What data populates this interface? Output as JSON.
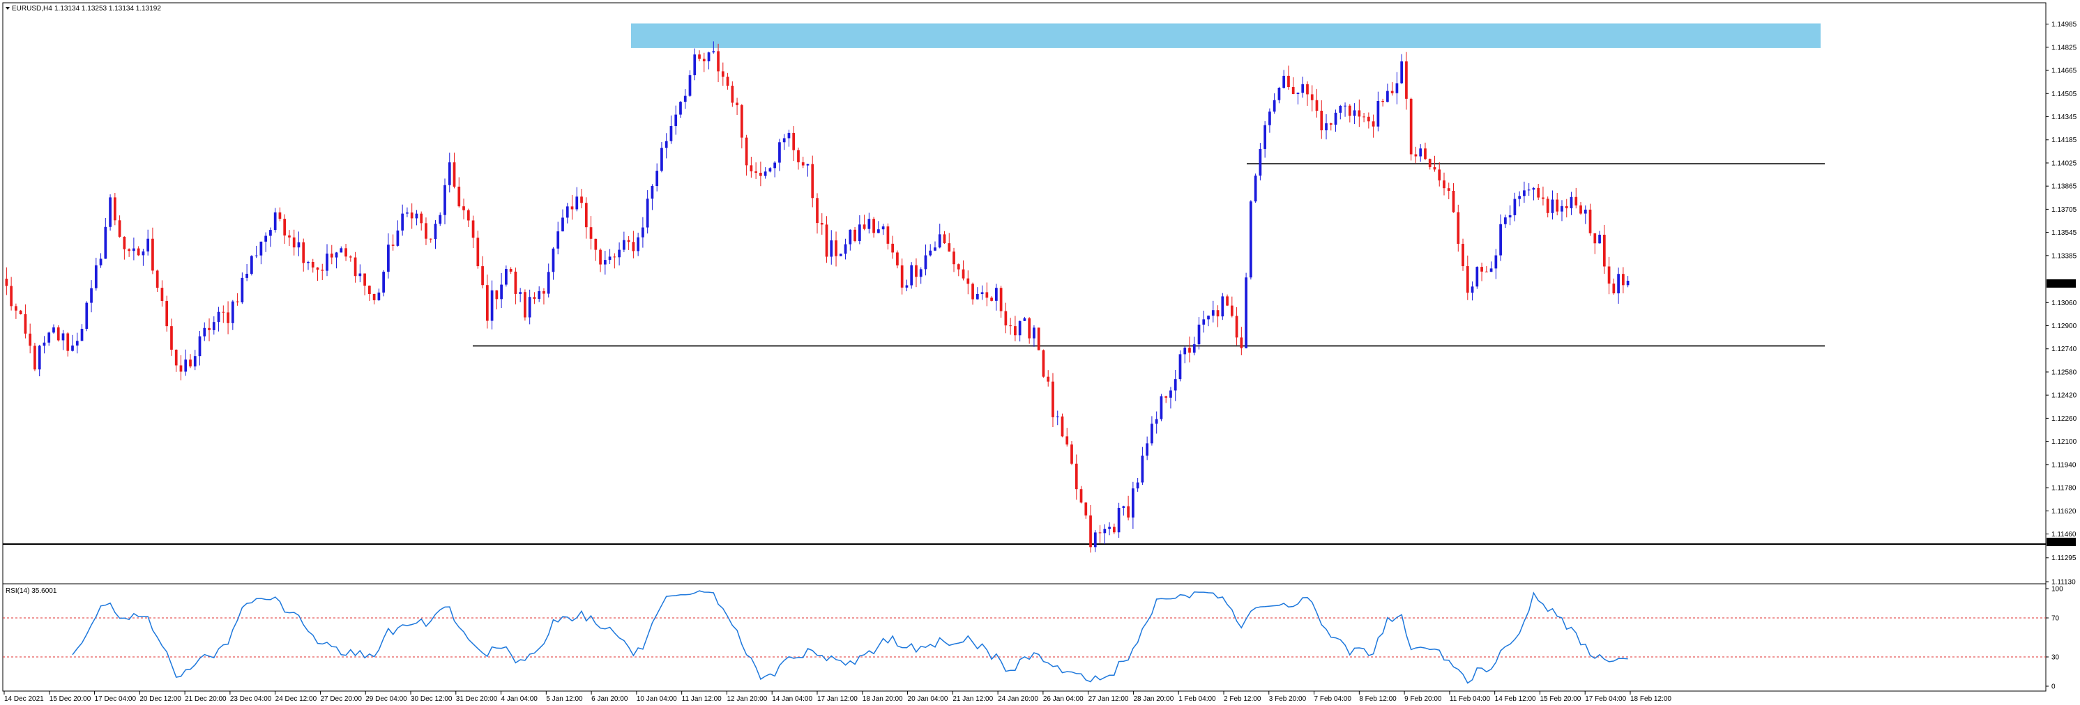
{
  "header": {
    "symbol": "EURUSD,H4",
    "ohlc": "1.13134 1.13253 1.13134 1.13192"
  },
  "rsi_panel": {
    "label": "RSI(14) 35.6001",
    "levels": [
      70,
      30
    ],
    "scale_labels": [
      "100",
      "70",
      "30",
      "0"
    ]
  },
  "colors": {
    "bull": "#1a1adc",
    "bear": "#ea1a1a",
    "zone": "#87cdeb",
    "rsi_line": "#1e78dc",
    "rsi_levels": "#e03030",
    "support_resistance": "#000000"
  },
  "chart_data": {
    "type": "candlestick",
    "symbol": "EURUSD",
    "timeframe": "H4",
    "current_price": "1.13192",
    "marked_level": "1.11405",
    "y_tick_labels": [
      "1.14985",
      "1.14825",
      "1.14665",
      "1.14505",
      "1.14345",
      "1.14185",
      "1.14025",
      "1.13865",
      "1.13705",
      "1.13545",
      "1.13385",
      "1.13060",
      "1.12900",
      "1.12740",
      "1.12580",
      "1.12420",
      "1.12260",
      "1.12100",
      "1.11940",
      "1.11780",
      "1.11620",
      "1.11460",
      "1.11295",
      "1.11130"
    ],
    "ylim": [
      1.1113,
      1.1507
    ],
    "x_tick_labels": [
      "14 Dec 2021",
      "15 Dec 20:00",
      "17 Dec 04:00",
      "20 Dec 12:00",
      "21 Dec 20:00",
      "23 Dec 04:00",
      "24 Dec 12:00",
      "27 Dec 20:00",
      "29 Dec 04:00",
      "30 Dec 12:00",
      "31 Dec 20:00",
      "4 Jan 04:00",
      "5 Jan 12:00",
      "6 Jan 20:00",
      "10 Jan 04:00",
      "11 Jan 12:00",
      "12 Jan 20:00",
      "14 Jan 04:00",
      "17 Jan 12:00",
      "18 Jan 20:00",
      "20 Jan 04:00",
      "21 Jan 12:00",
      "24 Jan 20:00",
      "26 Jan 04:00",
      "27 Jan 12:00",
      "28 Jan 20:00",
      "1 Feb 04:00",
      "2 Feb 12:00",
      "3 Feb 20:00",
      "7 Feb 04:00",
      "8 Feb 12:00",
      "9 Feb 20:00",
      "11 Feb 04:00",
      "14 Feb 12:00",
      "15 Feb 20:00",
      "17 Feb 04:00",
      "18 Feb 12:00"
    ],
    "close_path": [
      [
        0,
        1.1315
      ],
      [
        6,
        1.1265
      ],
      [
        10,
        1.1285
      ],
      [
        14,
        1.1275
      ],
      [
        18,
        1.131
      ],
      [
        22,
        1.1375
      ],
      [
        26,
        1.1335
      ],
      [
        30,
        1.1345
      ],
      [
        33,
        1.131
      ],
      [
        36,
        1.1255
      ],
      [
        40,
        1.127
      ],
      [
        43,
        1.129
      ],
      [
        47,
        1.1298
      ],
      [
        50,
        1.132
      ],
      [
        54,
        1.135
      ],
      [
        58,
        1.1365
      ],
      [
        62,
        1.1345
      ],
      [
        66,
        1.133
      ],
      [
        70,
        1.134
      ],
      [
        74,
        1.1332
      ],
      [
        78,
        1.1305
      ],
      [
        82,
        1.135
      ],
      [
        86,
        1.1372
      ],
      [
        90,
        1.1345
      ],
      [
        94,
        1.1395
      ],
      [
        98,
        1.136
      ],
      [
        102,
        1.13
      ],
      [
        106,
        1.133
      ],
      [
        110,
        1.13
      ],
      [
        114,
        1.132
      ],
      [
        118,
        1.136
      ],
      [
        122,
        1.1378
      ],
      [
        126,
        1.133
      ],
      [
        130,
        1.134
      ],
      [
        134,
        1.135
      ],
      [
        138,
        1.14
      ],
      [
        142,
        1.144
      ],
      [
        146,
        1.147
      ],
      [
        150,
        1.1475
      ],
      [
        154,
        1.145
      ],
      [
        158,
        1.1395
      ],
      [
        162,
        1.1405
      ],
      [
        166,
        1.142
      ],
      [
        170,
        1.1395
      ],
      [
        174,
        1.134
      ],
      [
        178,
        1.1345
      ],
      [
        182,
        1.136
      ],
      [
        186,
        1.1355
      ],
      [
        190,
        1.132
      ],
      [
        194,
        1.1335
      ],
      [
        198,
        1.135
      ],
      [
        202,
        1.133
      ],
      [
        206,
        1.1305
      ],
      [
        210,
        1.131
      ],
      [
        214,
        1.1285
      ],
      [
        218,
        1.129
      ],
      [
        222,
        1.123
      ],
      [
        226,
        1.119
      ],
      [
        230,
        1.114
      ],
      [
        234,
        1.115
      ],
      [
        238,
        1.1165
      ],
      [
        242,
        1.1205
      ],
      [
        246,
        1.1245
      ],
      [
        250,
        1.127
      ],
      [
        254,
        1.129
      ],
      [
        258,
        1.1305
      ],
      [
        262,
        1.128
      ],
      [
        264,
        1.138
      ],
      [
        268,
        1.1445
      ],
      [
        272,
        1.146
      ],
      [
        276,
        1.145
      ],
      [
        280,
        1.1425
      ],
      [
        284,
        1.1445
      ],
      [
        288,
        1.143
      ],
      [
        292,
        1.144
      ],
      [
        296,
        1.147
      ],
      [
        298,
        1.141
      ],
      [
        302,
        1.14
      ],
      [
        306,
        1.138
      ],
      [
        310,
        1.132
      ],
      [
        314,
        1.133
      ],
      [
        318,
        1.136
      ],
      [
        322,
        1.138
      ],
      [
        326,
        1.1375
      ],
      [
        330,
        1.137
      ],
      [
        334,
        1.1375
      ],
      [
        338,
        1.1345
      ],
      [
        340,
        1.132
      ],
      [
        342,
        1.1319
      ]
    ],
    "annotations": {
      "resistance_zone": [
        1.1482,
        1.1499
      ],
      "horizontal_lines": [
        1.1402,
        1.1276,
        1.1139
      ]
    },
    "rsi": {
      "name": "RSI(14)",
      "last": 35.6001,
      "ylim": [
        0,
        100
      ],
      "levels": [
        70,
        30
      ]
    },
    "grid": false
  }
}
